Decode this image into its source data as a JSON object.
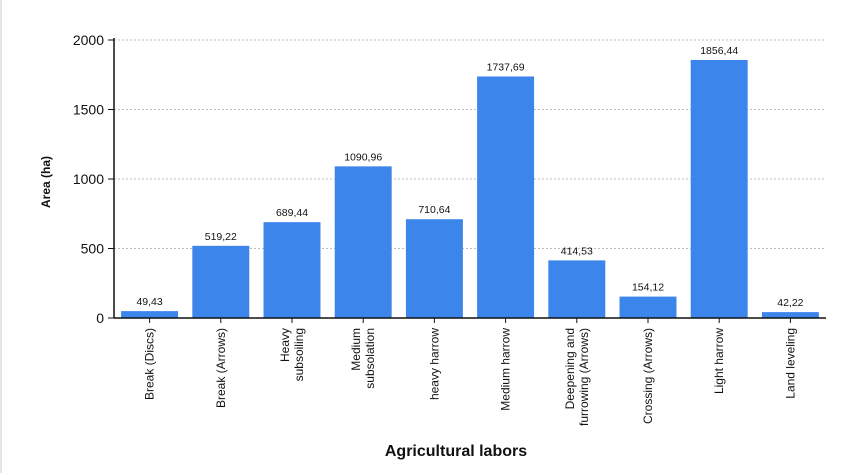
{
  "chart_data": {
    "type": "bar",
    "title": "",
    "xlabel": "Agricultural labors",
    "ylabel": "Area (ha)",
    "ylim": [
      0,
      2000
    ],
    "yticks": [
      "0",
      "500",
      "1000",
      "1500",
      "2000"
    ],
    "grid": true,
    "bar_color": "#3b85eb",
    "categories": [
      [
        "Break (Discs)"
      ],
      [
        "Break (Arrows)"
      ],
      [
        "Heavy",
        "subsoiling"
      ],
      [
        "Medium",
        "subsolation"
      ],
      [
        "heavy harrow"
      ],
      [
        "Medium harrow"
      ],
      [
        "Deepening and",
        "furrowing (Arrows)"
      ],
      [
        "Crossing (Arrows)"
      ],
      [
        "Light harrow"
      ],
      [
        "Land leveling"
      ]
    ],
    "values": [
      49.43,
      519.22,
      689.44,
      1090.96,
      710.64,
      1737.69,
      414.53,
      154.12,
      1856.44,
      42.22
    ],
    "value_labels": [
      "49,43",
      "519,22",
      "689,44",
      "1090,96",
      "710,64",
      "1737,69",
      "414,53",
      "154,12",
      "1856,44",
      "42,22"
    ]
  }
}
